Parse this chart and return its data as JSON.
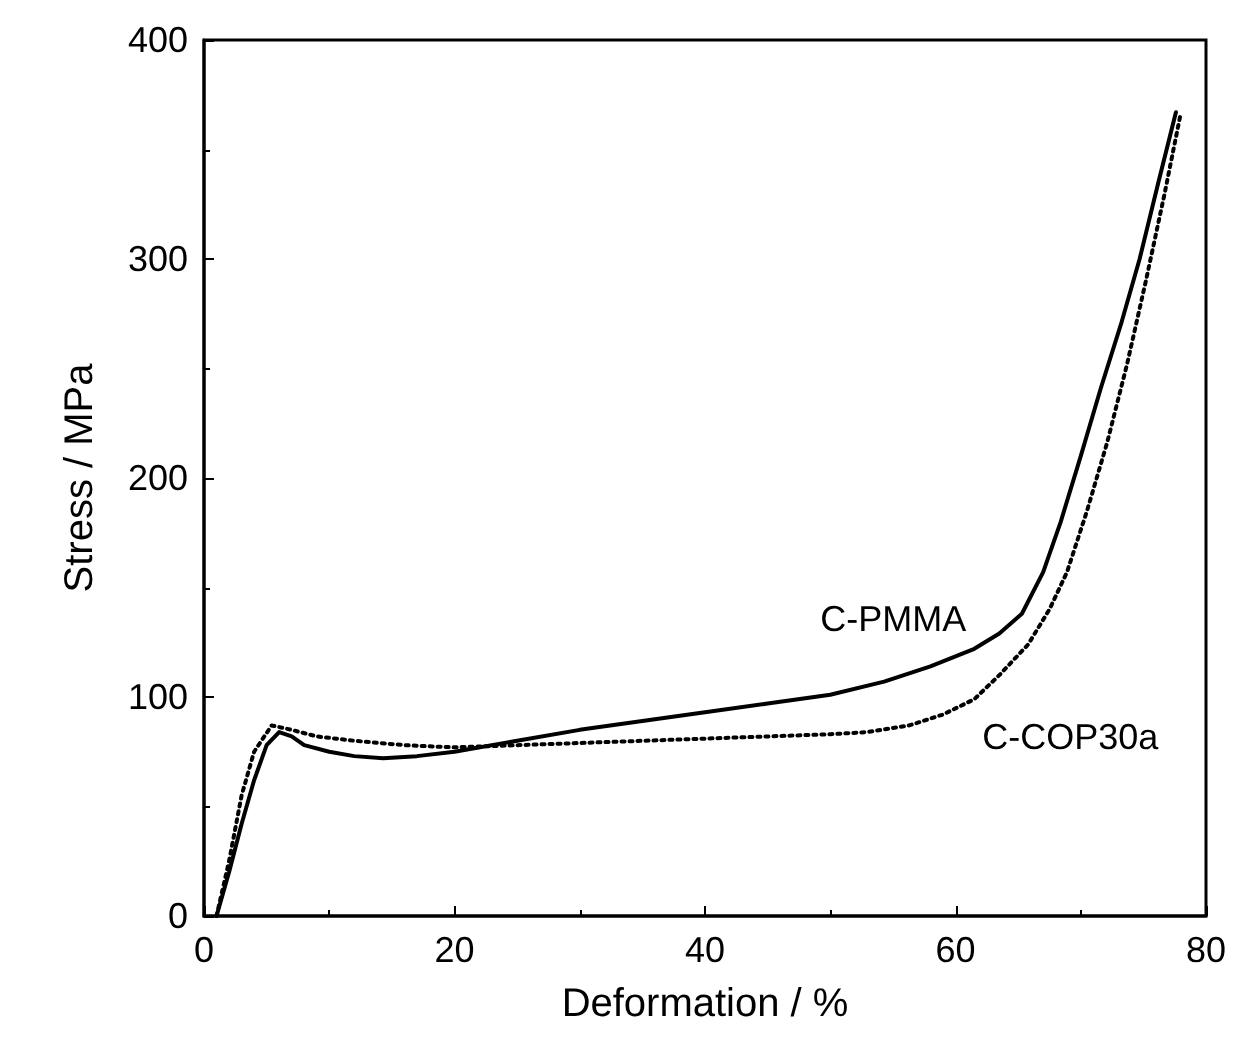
{
  "chart_data": {
    "type": "line",
    "xlabel": "Deformation / %",
    "ylabel": "Stress / MPa",
    "xlim": [
      0,
      80
    ],
    "xticks": [
      0,
      20,
      40,
      60,
      80
    ],
    "ylim": [
      0,
      400
    ],
    "yticks": [
      0,
      100,
      200,
      300,
      400
    ],
    "grid": false,
    "marker": "none",
    "series": [
      {
        "color": "#000000",
        "line_style": "solid",
        "x": [
          1,
          2,
          3,
          4,
          5,
          6,
          7,
          8,
          10,
          12,
          14.3,
          17,
          20,
          25,
          30,
          35,
          40,
          45,
          50,
          54.3,
          58,
          61.5,
          63.5,
          65.3,
          67,
          68.4,
          70,
          71.6,
          73.2,
          74.7,
          76.2,
          77.6
        ],
        "values": [
          0,
          20,
          42,
          62,
          78,
          84,
          82,
          78,
          75,
          73,
          72,
          73,
          75,
          80,
          85,
          89,
          93,
          97,
          101,
          107,
          114,
          122,
          129,
          138,
          157,
          180,
          210,
          241,
          270,
          300,
          335,
          367
        ]
      },
      {
        "color": "#000000",
        "line_style": "dotted",
        "x": [
          1,
          2,
          2.5,
          3,
          4,
          5.4,
          7,
          9,
          12,
          16,
          20,
          25,
          30,
          35,
          40,
          45,
          50,
          53,
          56.3,
          59,
          61.5,
          63.5,
          65.8,
          67.5,
          68.9,
          70.5,
          72.1,
          73.7,
          75.2,
          76.7,
          78
        ],
        "values": [
          0,
          25,
          40,
          55,
          75,
          87,
          85,
          82,
          80,
          78,
          77,
          78,
          79,
          80,
          81,
          82,
          83,
          84,
          87,
          92,
          99,
          110,
          124,
          140,
          157,
          185,
          216,
          252,
          290,
          330,
          367
        ]
      }
    ],
    "annotations": [
      {
        "text": "C-PMMA",
        "x": 61.5,
        "y": 122
      },
      {
        "text": "C-COP30a",
        "x": 61.5,
        "y": 99
      }
    ]
  }
}
